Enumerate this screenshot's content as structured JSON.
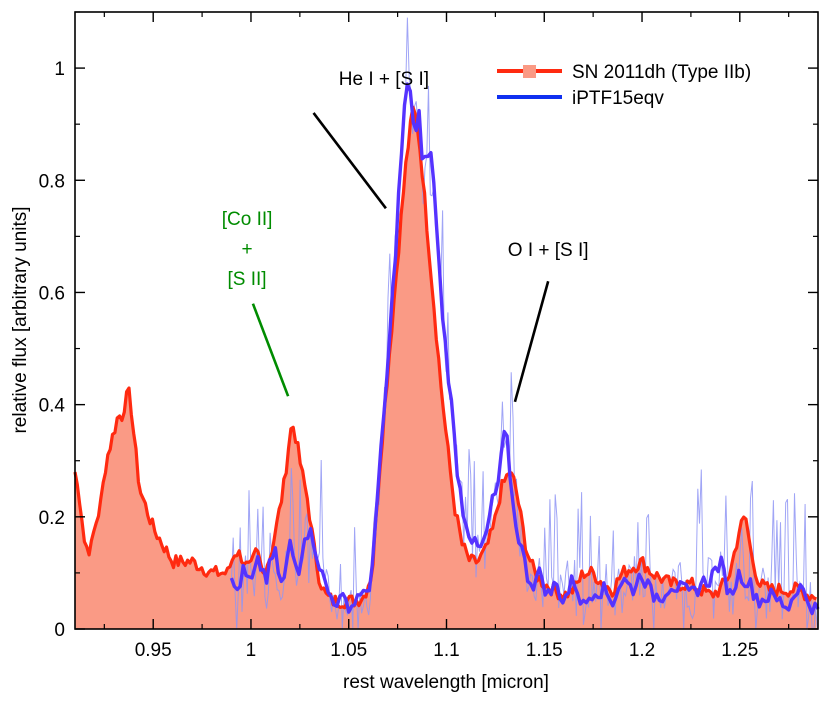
{
  "chart_data": {
    "type": "line",
    "xlabel": "rest wavelength [micron]",
    "ylabel": "relative flux [arbitrary units]",
    "xlim": [
      0.91,
      1.29
    ],
    "ylim": [
      0,
      1.1
    ],
    "xticks": [
      {
        "value": 0.95,
        "label": "0.95"
      },
      {
        "value": 1.0,
        "label": "1"
      },
      {
        "value": 1.05,
        "label": "1.05"
      },
      {
        "value": 1.1,
        "label": "1.1"
      },
      {
        "value": 1.15,
        "label": "1.15"
      },
      {
        "value": 1.2,
        "label": "1.2"
      },
      {
        "value": 1.25,
        "label": "1.25"
      }
    ],
    "yticks": [
      {
        "value": 0,
        "label": "0"
      },
      {
        "value": 0.2,
        "label": "0.2"
      },
      {
        "value": 0.4,
        "label": "0.4"
      },
      {
        "value": 0.6,
        "label": "0.6"
      },
      {
        "value": 0.8,
        "label": "0.8"
      },
      {
        "value": 1.0,
        "label": "1"
      }
    ],
    "legend_position": "top-right",
    "series": [
      {
        "name": "SN 2011dh (Type IIb)",
        "color": "#ff2a10",
        "fill_color": "#fa9a85",
        "x": [
          0.91,
          0.913,
          0.915,
          0.918,
          0.92,
          0.923,
          0.926,
          0.929,
          0.932,
          0.934,
          0.936,
          0.938,
          0.94,
          0.943,
          0.946,
          0.95,
          0.955,
          0.96,
          0.965,
          0.97,
          0.975,
          0.98,
          0.985,
          0.988,
          0.99,
          0.992,
          0.995,
          0.998,
          1.0,
          1.003,
          1.006,
          1.01,
          1.014,
          1.017,
          1.019,
          1.021,
          1.023,
          1.026,
          1.029,
          1.032,
          1.035,
          1.038,
          1.042,
          1.046,
          1.05,
          1.054,
          1.058,
          1.062,
          1.065,
          1.068,
          1.071,
          1.074,
          1.077,
          1.079,
          1.081,
          1.083,
          1.085,
          1.087,
          1.089,
          1.091,
          1.094,
          1.097,
          1.1,
          1.104,
          1.108,
          1.112,
          1.116,
          1.12,
          1.124,
          1.128,
          1.132,
          1.135,
          1.138,
          1.141,
          1.145,
          1.15,
          1.155,
          1.16,
          1.165,
          1.17,
          1.175,
          1.18,
          1.185,
          1.19,
          1.195,
          1.2,
          1.205,
          1.21,
          1.215,
          1.22,
          1.225,
          1.23,
          1.235,
          1.24,
          1.245,
          1.25,
          1.253,
          1.256,
          1.26,
          1.265,
          1.27,
          1.275,
          1.28,
          1.285,
          1.29
        ],
        "y": [
          0.28,
          0.22,
          0.15,
          0.14,
          0.18,
          0.22,
          0.3,
          0.34,
          0.38,
          0.38,
          0.41,
          0.42,
          0.35,
          0.25,
          0.22,
          0.18,
          0.15,
          0.12,
          0.12,
          0.12,
          0.11,
          0.1,
          0.1,
          0.1,
          0.12,
          0.14,
          0.13,
          0.11,
          0.11,
          0.14,
          0.1,
          0.13,
          0.2,
          0.26,
          0.32,
          0.37,
          0.34,
          0.28,
          0.23,
          0.15,
          0.09,
          0.06,
          0.05,
          0.05,
          0.05,
          0.05,
          0.06,
          0.1,
          0.25,
          0.38,
          0.5,
          0.62,
          0.74,
          0.82,
          0.88,
          0.93,
          0.9,
          0.84,
          0.76,
          0.68,
          0.56,
          0.44,
          0.34,
          0.22,
          0.15,
          0.12,
          0.12,
          0.14,
          0.18,
          0.25,
          0.28,
          0.26,
          0.2,
          0.14,
          0.1,
          0.08,
          0.07,
          0.06,
          0.07,
          0.1,
          0.1,
          0.08,
          0.07,
          0.1,
          0.11,
          0.12,
          0.1,
          0.09,
          0.08,
          0.08,
          0.08,
          0.07,
          0.06,
          0.07,
          0.1,
          0.18,
          0.2,
          0.13,
          0.08,
          0.07,
          0.07,
          0.07,
          0.07,
          0.06,
          0.06
        ]
      },
      {
        "name": "iPTF15eqv",
        "color": "#5533ff",
        "noise_color": "#8f95f5",
        "x": [
          0.99,
          0.993,
          0.996,
          1.0,
          1.004,
          1.008,
          1.012,
          1.016,
          1.02,
          1.024,
          1.028,
          1.032,
          1.036,
          1.04,
          1.044,
          1.048,
          1.052,
          1.056,
          1.06,
          1.064,
          1.068,
          1.071,
          1.074,
          1.076,
          1.078,
          1.079,
          1.08,
          1.082,
          1.084,
          1.086,
          1.088,
          1.09,
          1.093,
          1.096,
          1.099,
          1.102,
          1.105,
          1.108,
          1.111,
          1.114,
          1.117,
          1.12,
          1.123,
          1.126,
          1.128,
          1.13,
          1.132,
          1.134,
          1.136,
          1.138,
          1.141,
          1.144,
          1.148,
          1.152,
          1.156,
          1.16,
          1.165,
          1.17,
          1.175,
          1.18,
          1.185,
          1.19,
          1.195,
          1.2,
          1.205,
          1.21,
          1.215,
          1.22,
          1.225,
          1.23,
          1.235,
          1.24,
          1.245,
          1.25,
          1.255,
          1.26,
          1.265,
          1.27,
          1.275,
          1.28,
          1.285,
          1.29
        ],
        "y": [
          0.08,
          0.07,
          0.1,
          0.08,
          0.12,
          0.09,
          0.14,
          0.07,
          0.15,
          0.1,
          0.18,
          0.16,
          0.1,
          0.06,
          0.05,
          0.05,
          0.04,
          0.07,
          0.05,
          0.2,
          0.38,
          0.52,
          0.68,
          0.8,
          0.9,
          0.95,
          0.97,
          0.94,
          0.88,
          0.92,
          0.8,
          0.86,
          0.83,
          0.65,
          0.52,
          0.42,
          0.3,
          0.22,
          0.18,
          0.15,
          0.14,
          0.16,
          0.22,
          0.25,
          0.3,
          0.36,
          0.3,
          0.22,
          0.18,
          0.15,
          0.1,
          0.08,
          0.1,
          0.06,
          0.08,
          0.05,
          0.09,
          0.04,
          0.07,
          0.07,
          0.05,
          0.09,
          0.07,
          0.1,
          0.06,
          0.06,
          0.08,
          0.07,
          0.06,
          0.08,
          0.09,
          0.12,
          0.06,
          0.1,
          0.08,
          0.05,
          0.06,
          0.05,
          0.04,
          0.08,
          0.05,
          0.03
        ]
      }
    ],
    "annotations": [
      {
        "lines": [
          "He I + [S I]"
        ],
        "color": "#000000",
        "text_x": 1.068,
        "text_y": 0.97,
        "line_from": [
          1.032,
          0.92
        ],
        "line_to": [
          1.069,
          0.75
        ]
      },
      {
        "lines": [
          "[Co II]",
          "+",
          "[S II]"
        ],
        "color": "#008c00",
        "text_x": 0.998,
        "text_y": 0.72,
        "line_from": [
          1.001,
          0.58
        ],
        "line_to": [
          1.019,
          0.415
        ]
      },
      {
        "lines": [
          "O I + [S I]"
        ],
        "color": "#000000",
        "text_x": 1.152,
        "text_y": 0.665,
        "line_from": [
          1.152,
          0.62
        ],
        "line_to": [
          1.135,
          0.405
        ]
      }
    ]
  }
}
